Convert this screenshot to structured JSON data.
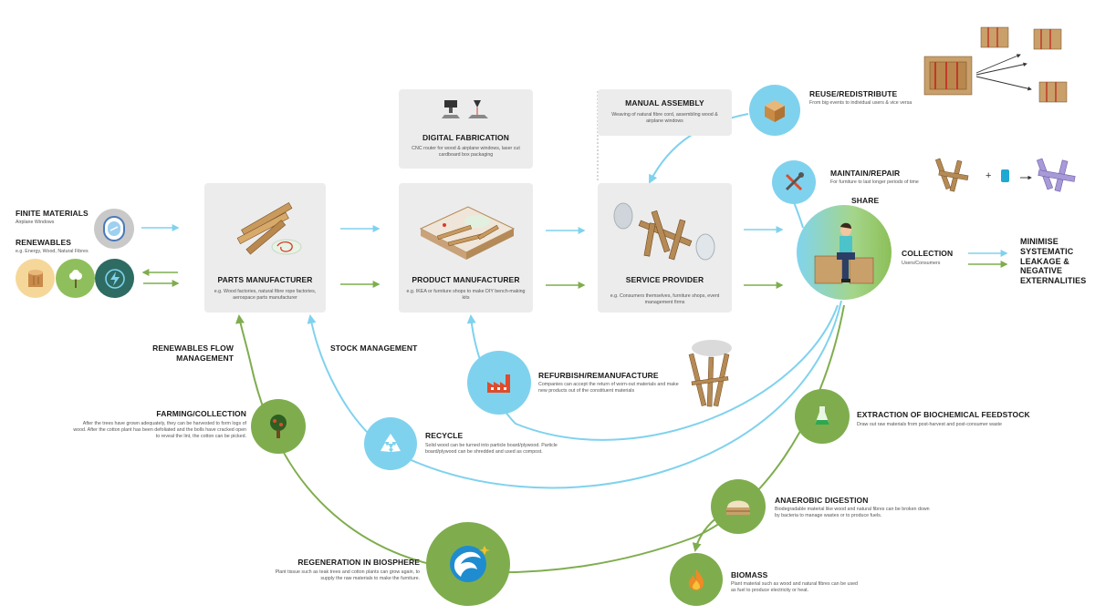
{
  "colors": {
    "blue": "#7fd2ee",
    "green": "#7fad4e",
    "card": "#ececec"
  },
  "inputs": {
    "finite": {
      "title": "FINITE MATERIALS",
      "sub": "Airplane Windows",
      "icon": "airplane-window-icon"
    },
    "renewables": {
      "title": "RENEWABLES",
      "sub": "e.g. Energy, Wood, Natural Fibres",
      "icons": [
        "wood-log-icon",
        "cotton-icon",
        "energy-icon"
      ]
    }
  },
  "cards": {
    "parts": {
      "title": "PARTS MANUFACTURER",
      "desc": "e.g. Wood factories, natural fibre rope factories, aerospace parts manufacturer"
    },
    "digital": {
      "title": "DIGITAL FABRICATION",
      "desc": "CNC router for wood & airplane windows, laser cut cardboard box packaging"
    },
    "product": {
      "title": "PRODUCT MANUFACTURER",
      "desc": "e.g. IKEA or furniture shops to make DIY bench-making kits"
    },
    "manual": {
      "title": "MANUAL ASSEMBLY",
      "desc": "Weaving of natural fibre cord, assembling wood & airplane windows"
    },
    "service": {
      "title": "SERVICE PROVIDER",
      "desc": "e.g. Consumers themselves, furniture shops, event management firms"
    }
  },
  "technical": {
    "reuse": {
      "title": "REUSE/REDISTRIBUTE",
      "desc": "From big events to individual users & vice versa"
    },
    "maintain": {
      "title": "MAINTAIN/REPAIR",
      "desc": "For furniture to last longer periods of time"
    },
    "share": {
      "title": "SHARE"
    },
    "collection": {
      "title": "COLLECTION",
      "desc": "Users/Consumers"
    },
    "refurbish": {
      "title": "REFURBISH/REMANUFACTURE",
      "desc": "Companies can accept the return of worn-out materials and make new products out of the constituent materials"
    },
    "recycle": {
      "title": "RECYCLE",
      "desc": "Solid wood can be turned into particle board/plywood. Particle board/plywood can be shredded and used as compost."
    },
    "stock": {
      "title": "STOCK MANAGEMENT"
    }
  },
  "biological": {
    "renew_flow": {
      "title": "RENEWABLES FLOW MANAGEMENT"
    },
    "farming": {
      "title": "FARMING/COLLECTION",
      "desc": "After the trees have grown adequately, they can be harvested to form logs of wood. After the cotton plant has been defoliated and the bolls have cracked open to reveal the lint, the cotton can be picked."
    },
    "regen": {
      "title": "REGENERATION IN BIOSPHERE",
      "desc": "Plant tissue such as teak trees and cotton plants can grow again, to supply the raw materials to make the furniture."
    },
    "extraction": {
      "title": "Extraction of biochemical feedstock",
      "desc": "Draw out raw materials from post-harvest and post-consumer waste"
    },
    "anaerobic": {
      "title": "ANAEROBIC DIGESTION",
      "desc": "Biodegradable material like wood and natural fibres can be broken down by bacteria to manage wastes or to produce fuels."
    },
    "biomass": {
      "title": "BIOMASS",
      "desc": "Plant material such as wood and natural fibres can be used as fuel to produce electricity or heat."
    }
  },
  "outcome": {
    "title": "MINIMISE SYSTEMATIC LEAKAGE & NEGATIVE EXTERNALITIES"
  },
  "misc": {
    "plus": "+"
  }
}
